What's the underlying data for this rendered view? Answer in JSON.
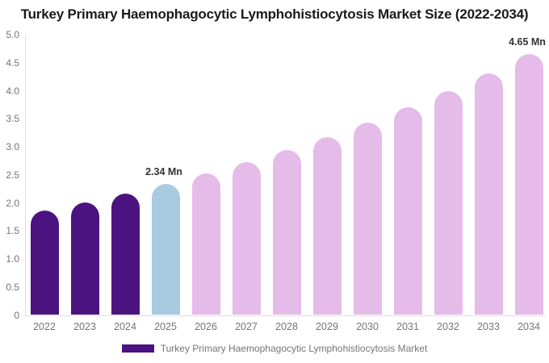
{
  "chart_data": {
    "type": "bar",
    "title": "Turkey Primary Haemophagocytic Lymphohistiocytosis Market Size (2022-2034)",
    "xlabel": "",
    "ylabel": "",
    "unit": "Mn",
    "ylim": [
      0,
      5
    ],
    "grid": false,
    "legend_position": "bottom",
    "categories": [
      "2022",
      "2023",
      "2024",
      "2025",
      "2026",
      "2027",
      "2028",
      "2029",
      "2030",
      "2031",
      "2032",
      "2033",
      "2034"
    ],
    "values": [
      1.86,
      2.01,
      2.17,
      2.34,
      2.53,
      2.73,
      2.94,
      3.17,
      3.43,
      3.7,
      3.99,
      4.31,
      4.65
    ],
    "bar_colors": [
      "#4b1380",
      "#4b1380",
      "#4b1380",
      "#a8cbe1",
      "#e5bbe9",
      "#e5bbe9",
      "#e5bbe9",
      "#e5bbe9",
      "#e5bbe9",
      "#e5bbe9",
      "#e5bbe9",
      "#e5bbe9",
      "#e5bbe9"
    ],
    "yticks": [
      {
        "value": 0,
        "label": "0"
      },
      {
        "value": 0.5,
        "label": "0.5"
      },
      {
        "value": 1.0,
        "label": "1.0"
      },
      {
        "value": 1.5,
        "label": "1.5"
      },
      {
        "value": 2.0,
        "label": "2.0"
      },
      {
        "value": 2.5,
        "label": "2.5"
      },
      {
        "value": 3.0,
        "label": "3.0"
      },
      {
        "value": 3.5,
        "label": "3.5"
      },
      {
        "value": 4.0,
        "label": "4.0"
      },
      {
        "value": 4.5,
        "label": "4.5"
      },
      {
        "value": 5.0,
        "label": "5.0"
      }
    ],
    "annotations": [
      {
        "category": "2025",
        "text": "2.34 Mn"
      },
      {
        "category": "2034",
        "text": "4.65 Mn"
      }
    ],
    "legend": {
      "label": "Turkey Primary Haemophagocytic Lymphohistiocytosis Market",
      "swatch_color": "#4b1380"
    },
    "colors": {
      "historical_bar": "#4b1380",
      "base_year_bar": "#a8cbe1",
      "forecast_bar": "#e5bbe9",
      "axis_line": "#dddddd",
      "tick_text": "#757575",
      "title_text": "#1a1a1a",
      "annotation_text": "#333333"
    }
  }
}
